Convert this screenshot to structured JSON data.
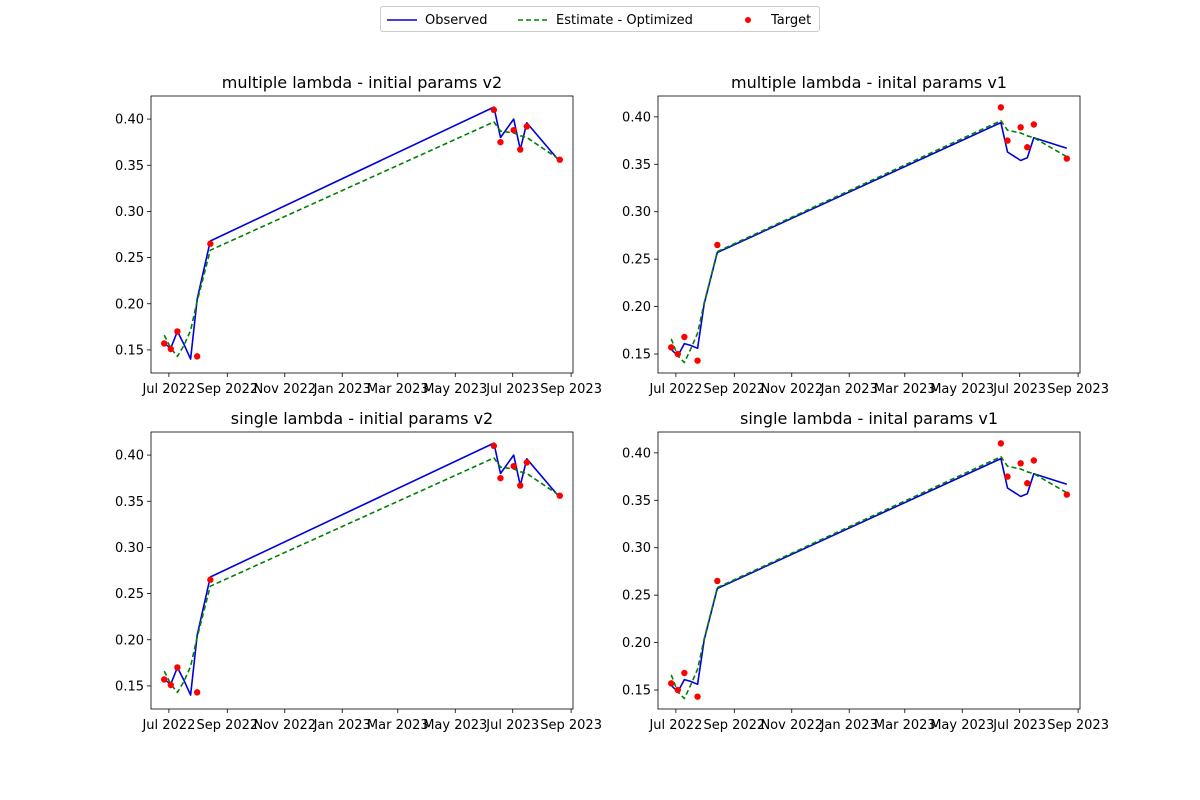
{
  "legend": {
    "observed_label": "Observed",
    "estimate_label": "Estimate - Optimized",
    "target_label": "Target"
  },
  "colors": {
    "observed": "#0000dd",
    "estimate": "#008000",
    "target": "#ff0000"
  },
  "chart_data": [
    {
      "type": "line",
      "title": "multiple lambda - initial params v2",
      "xlabel": "",
      "ylabel": "",
      "x_ticks": [
        "Jul 2022",
        "Sep 2022",
        "Nov 2022",
        "Jan 2023",
        "Mar 2023",
        "May 2023",
        "Jul 2023",
        "Sep 2023"
      ],
      "x": [
        "2022-06-26",
        "2022-07-03",
        "2022-07-10",
        "2022-07-17",
        "2022-07-24",
        "2022-07-31",
        "2022-08-14",
        "2023-06-11",
        "2023-06-18",
        "2023-07-02",
        "2023-07-09",
        "2023-07-16",
        "2023-08-20"
      ],
      "xlim": [
        "2022-06-12",
        "2023-09-03"
      ],
      "ylim": [
        0.125,
        0.425
      ],
      "y_ticks": [
        "0.15",
        "0.20",
        "0.25",
        "0.30",
        "0.35",
        "0.40"
      ],
      "grid": false,
      "series": [
        {
          "name": "Observed",
          "style": "line",
          "values": [
            0.157,
            0.152,
            0.17,
            0.156,
            0.14,
            0.205,
            0.268,
            0.413,
            0.38,
            0.4,
            0.367,
            0.396,
            0.354
          ]
        },
        {
          "name": "Estimate - Optimized",
          "style": "dashed",
          "values": [
            0.166,
            0.152,
            0.143,
            0.155,
            0.171,
            0.203,
            0.258,
            0.397,
            0.387,
            0.385,
            0.382,
            0.38,
            0.356
          ]
        },
        {
          "name": "Target",
          "style": "scatter",
          "x": [
            "2022-06-26",
            "2022-07-03",
            "2022-07-10",
            "2022-07-31",
            "2022-08-14",
            "2023-06-11",
            "2023-06-18",
            "2023-07-02",
            "2023-07-09",
            "2023-07-16",
            "2023-08-20"
          ],
          "values": [
            0.157,
            0.151,
            0.17,
            0.143,
            0.265,
            0.41,
            0.375,
            0.388,
            0.367,
            0.392,
            0.356
          ]
        }
      ]
    },
    {
      "type": "line",
      "title": "multiple lambda - inital params v1",
      "xlabel": "",
      "ylabel": "",
      "x_ticks": [
        "Jul 2022",
        "Sep 2022",
        "Nov 2022",
        "Jan 2023",
        "Mar 2023",
        "May 2023",
        "Jul 2023",
        "Sep 2023"
      ],
      "x": [
        "2022-06-26",
        "2022-07-03",
        "2022-07-10",
        "2022-07-17",
        "2022-07-24",
        "2022-07-31",
        "2022-08-14",
        "2023-06-11",
        "2023-06-18",
        "2023-07-02",
        "2023-07-09",
        "2023-07-16",
        "2023-08-20"
      ],
      "xlim": [
        "2022-06-12",
        "2023-09-03"
      ],
      "ylim": [
        0.13,
        0.422
      ],
      "y_ticks": [
        "0.15",
        "0.20",
        "0.25",
        "0.30",
        "0.35",
        "0.40"
      ],
      "grid": false,
      "series": [
        {
          "name": "Observed",
          "style": "line",
          "values": [
            0.155,
            0.148,
            0.161,
            0.159,
            0.156,
            0.203,
            0.257,
            0.394,
            0.363,
            0.354,
            0.357,
            0.378,
            0.367
          ]
        },
        {
          "name": "Estimate - Optimized",
          "style": "dashed",
          "values": [
            0.166,
            0.148,
            0.141,
            0.156,
            0.172,
            0.204,
            0.258,
            0.396,
            0.386,
            0.383,
            0.38,
            0.378,
            0.358
          ]
        },
        {
          "name": "Target",
          "style": "scatter",
          "x": [
            "2022-06-26",
            "2022-07-03",
            "2022-07-10",
            "2022-07-24",
            "2022-08-14",
            "2023-06-11",
            "2023-06-18",
            "2023-07-02",
            "2023-07-09",
            "2023-07-16",
            "2023-08-20"
          ],
          "values": [
            0.157,
            0.15,
            0.168,
            0.143,
            0.265,
            0.41,
            0.375,
            0.389,
            0.368,
            0.392,
            0.356
          ]
        }
      ]
    },
    {
      "type": "line",
      "title": "single lambda - initial params v2",
      "xlabel": "",
      "ylabel": "",
      "x_ticks": [
        "Jul 2022",
        "Sep 2022",
        "Nov 2022",
        "Jan 2023",
        "Mar 2023",
        "May 2023",
        "Jul 2023",
        "Sep 2023"
      ],
      "x": [
        "2022-06-26",
        "2022-07-03",
        "2022-07-10",
        "2022-07-17",
        "2022-07-24",
        "2022-07-31",
        "2022-08-14",
        "2023-06-11",
        "2023-06-18",
        "2023-07-02",
        "2023-07-09",
        "2023-07-16",
        "2023-08-20"
      ],
      "xlim": [
        "2022-06-12",
        "2023-09-03"
      ],
      "ylim": [
        0.125,
        0.425
      ],
      "y_ticks": [
        "0.15",
        "0.20",
        "0.25",
        "0.30",
        "0.35",
        "0.40"
      ],
      "grid": false,
      "series": [
        {
          "name": "Observed",
          "style": "line",
          "values": [
            0.157,
            0.152,
            0.17,
            0.156,
            0.14,
            0.205,
            0.268,
            0.413,
            0.38,
            0.4,
            0.367,
            0.396,
            0.354
          ]
        },
        {
          "name": "Estimate - Optimized",
          "style": "dashed",
          "values": [
            0.166,
            0.152,
            0.143,
            0.155,
            0.171,
            0.203,
            0.258,
            0.397,
            0.387,
            0.385,
            0.382,
            0.38,
            0.356
          ]
        },
        {
          "name": "Target",
          "style": "scatter",
          "x": [
            "2022-06-26",
            "2022-07-03",
            "2022-07-10",
            "2022-07-31",
            "2022-08-14",
            "2023-06-11",
            "2023-06-18",
            "2023-07-02",
            "2023-07-09",
            "2023-07-16",
            "2023-08-20"
          ],
          "values": [
            0.157,
            0.151,
            0.17,
            0.143,
            0.265,
            0.41,
            0.375,
            0.388,
            0.367,
            0.392,
            0.356
          ]
        }
      ]
    },
    {
      "type": "line",
      "title": "single lambda - inital params v1",
      "xlabel": "",
      "ylabel": "",
      "x_ticks": [
        "Jul 2022",
        "Sep 2022",
        "Nov 2022",
        "Jan 2023",
        "Mar 2023",
        "May 2023",
        "Jul 2023",
        "Sep 2023"
      ],
      "x": [
        "2022-06-26",
        "2022-07-03",
        "2022-07-10",
        "2022-07-17",
        "2022-07-24",
        "2022-07-31",
        "2022-08-14",
        "2023-06-11",
        "2023-06-18",
        "2023-07-02",
        "2023-07-09",
        "2023-07-16",
        "2023-08-20"
      ],
      "xlim": [
        "2022-06-12",
        "2023-09-03"
      ],
      "ylim": [
        0.13,
        0.422
      ],
      "y_ticks": [
        "0.15",
        "0.20",
        "0.25",
        "0.30",
        "0.35",
        "0.40"
      ],
      "grid": false,
      "series": [
        {
          "name": "Observed",
          "style": "line",
          "values": [
            0.155,
            0.148,
            0.161,
            0.159,
            0.156,
            0.203,
            0.257,
            0.394,
            0.363,
            0.354,
            0.357,
            0.378,
            0.367
          ]
        },
        {
          "name": "Estimate - Optimized",
          "style": "dashed",
          "values": [
            0.166,
            0.148,
            0.141,
            0.156,
            0.172,
            0.204,
            0.258,
            0.396,
            0.386,
            0.383,
            0.38,
            0.378,
            0.358
          ]
        },
        {
          "name": "Target",
          "style": "scatter",
          "x": [
            "2022-06-26",
            "2022-07-03",
            "2022-07-10",
            "2022-07-24",
            "2022-08-14",
            "2023-06-11",
            "2023-06-18",
            "2023-07-02",
            "2023-07-09",
            "2023-07-16",
            "2023-08-20"
          ],
          "values": [
            0.157,
            0.15,
            0.168,
            0.143,
            0.265,
            0.41,
            0.375,
            0.389,
            0.368,
            0.392,
            0.356
          ]
        }
      ]
    }
  ]
}
